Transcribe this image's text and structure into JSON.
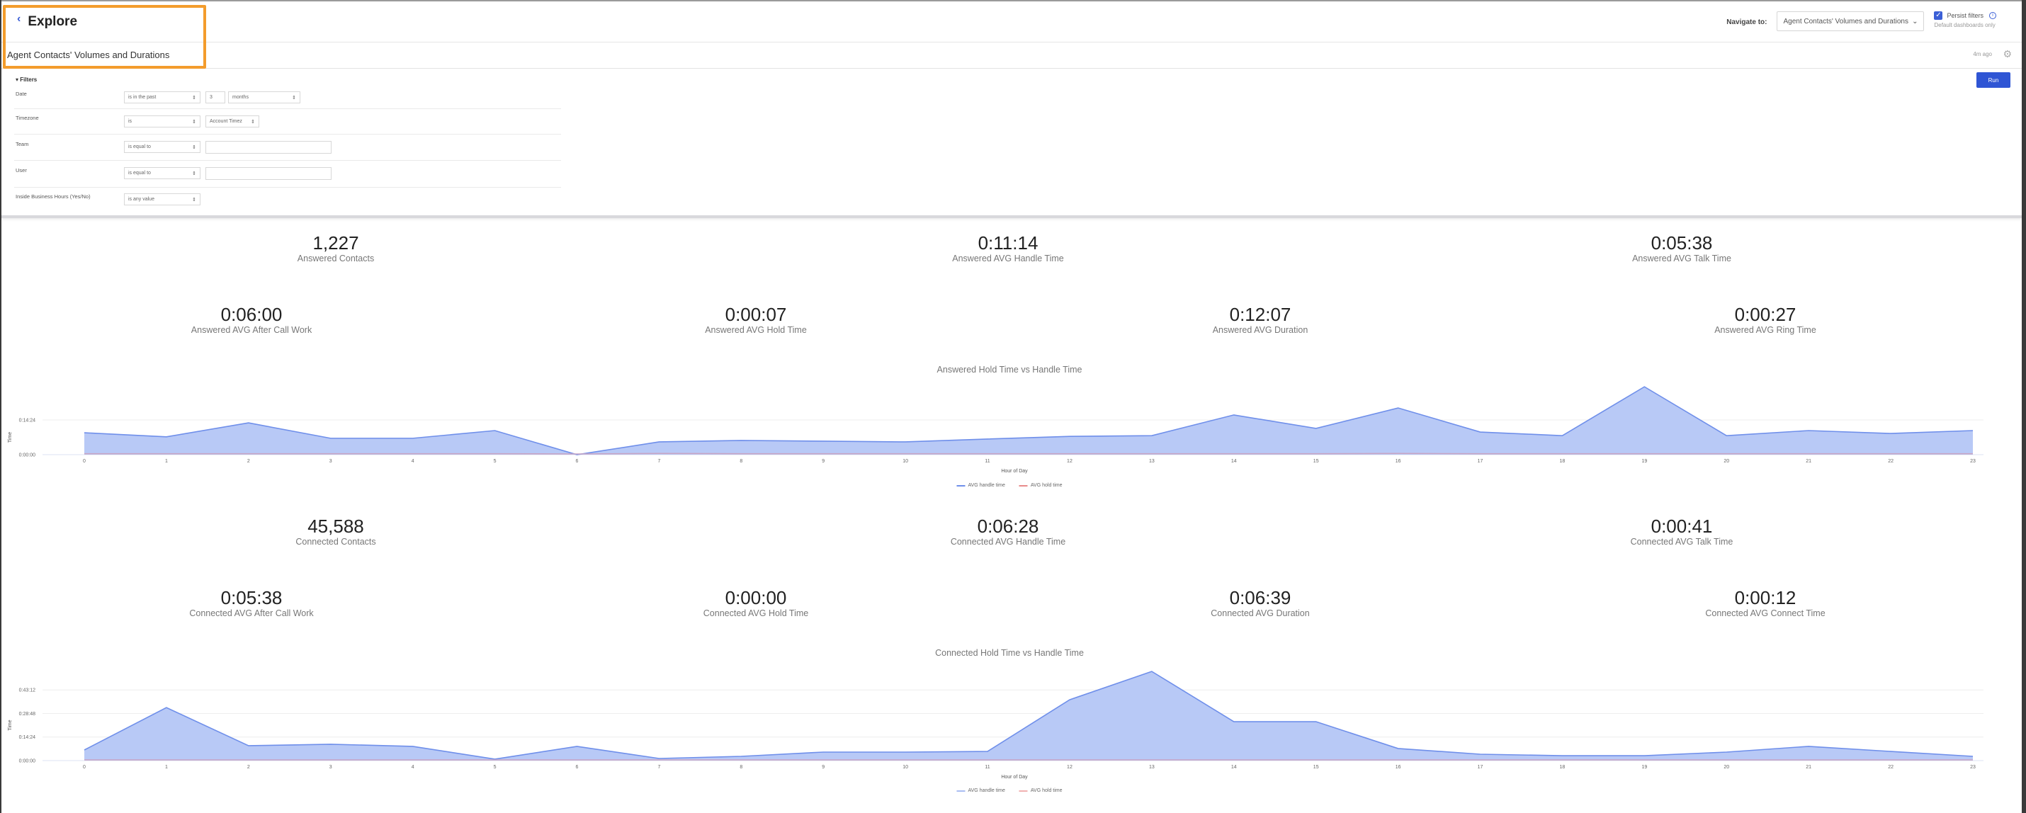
{
  "header": {
    "back_label": "Explore",
    "navigate_label": "Navigate to:",
    "navigate_value": "Agent Contacts' Volumes and Durations",
    "persist_filters_label": "Persist filters",
    "persist_filters_checked": true,
    "persist_filters_sub": "Default dashboards only"
  },
  "dashboard": {
    "title": "Agent Contacts' Volumes and Durations",
    "last_run": "4m ago"
  },
  "filters": {
    "toggle_label": "Filters",
    "run_label": "Run",
    "rows": [
      {
        "label": "Date",
        "operator": "is in the past",
        "value": "3",
        "unit": "months"
      },
      {
        "label": "Timezone",
        "operator": "is",
        "value": "Account Timez"
      },
      {
        "label": "Team",
        "operator": "is equal to",
        "value": ""
      },
      {
        "label": "User",
        "operator": "is equal to",
        "value": ""
      },
      {
        "label": "Inside Business Hours (Yes/No)",
        "operator": "is any value"
      }
    ]
  },
  "answered": {
    "kpis": [
      {
        "value": "1,227",
        "label": "Answered Contacts"
      },
      {
        "value": "0:11:14",
        "label": "Answered AVG Handle Time"
      },
      {
        "value": "0:05:38",
        "label": "Answered AVG Talk Time"
      },
      {
        "value": "0:06:00",
        "label": "Answered AVG After Call Work"
      },
      {
        "value": "0:00:07",
        "label": "Answered AVG Hold Time"
      },
      {
        "value": "0:12:07",
        "label": "Answered AVG Duration"
      },
      {
        "value": "0:00:27",
        "label": "Answered AVG Ring Time"
      }
    ]
  },
  "connected": {
    "kpis": [
      {
        "value": "45,588",
        "label": "Connected Contacts"
      },
      {
        "value": "0:06:28",
        "label": "Connected AVG Handle Time"
      },
      {
        "value": "0:00:41",
        "label": "Connected AVG Talk Time"
      },
      {
        "value": "0:05:38",
        "label": "Connected AVG After Call Work"
      },
      {
        "value": "0:00:00",
        "label": "Connected AVG Hold Time"
      },
      {
        "value": "0:06:39",
        "label": "Connected AVG Duration"
      },
      {
        "value": "0:00:12",
        "label": "Connected AVG Connect Time"
      }
    ]
  },
  "colors": {
    "accent": "#2f55d4",
    "highlight": "#f39c2c",
    "series_handle": "#6f8fea",
    "series_handle_fill": "#b4c6f5",
    "series_hold": "#e88a8a"
  },
  "chart_data": [
    {
      "type": "area",
      "title": "Answered Hold Time vs Handle Time",
      "xlabel": "Hour of Day",
      "ylabel": "Time",
      "y_ticks": [
        "0:00:00",
        "0:14:24"
      ],
      "y_tick_minutes": [
        0,
        14.4
      ],
      "ylim_minutes": [
        0,
        30
      ],
      "grid": true,
      "legend_position": "bottom",
      "x": [
        0,
        1,
        2,
        3,
        4,
        5,
        6,
        7,
        8,
        9,
        10,
        11,
        12,
        13,
        14,
        15,
        16,
        17,
        18,
        19,
        20,
        21,
        22,
        23
      ],
      "series": [
        {
          "name": "AVG handle time",
          "unit": "minutes",
          "values": [
            9.1,
            7.4,
            13.2,
            6.8,
            6.8,
            10.0,
            0.0,
            5.3,
            5.9,
            5.6,
            5.3,
            6.5,
            7.6,
            7.9,
            16.5,
            10.9,
            19.4,
            9.4,
            7.9,
            28.2,
            7.9,
            10.0,
            8.8,
            10.0
          ]
        },
        {
          "name": "AVG hold time",
          "unit": "minutes",
          "values": [
            0.1,
            0.1,
            0.1,
            0.1,
            0.1,
            0.1,
            0.0,
            0.2,
            0.1,
            0.1,
            0.1,
            0.1,
            0.1,
            0.1,
            0.1,
            0.1,
            0.2,
            0.1,
            0.1,
            0.1,
            0.1,
            0.1,
            0.1,
            0.1
          ]
        }
      ]
    },
    {
      "type": "area",
      "title": "Connected Hold Time vs Handle Time",
      "xlabel": "Hour of Day",
      "ylabel": "Time",
      "y_ticks": [
        "0:00:00",
        "0:14:24",
        "0:28:48",
        "0:43:12"
      ],
      "y_tick_minutes": [
        0,
        14.4,
        28.8,
        43.2
      ],
      "ylim_minutes": [
        0,
        58
      ],
      "grid": true,
      "legend_position": "bottom",
      "x": [
        0,
        1,
        2,
        3,
        4,
        5,
        6,
        7,
        8,
        9,
        10,
        11,
        12,
        13,
        14,
        15,
        16,
        17,
        18,
        19,
        20,
        21,
        22,
        23
      ],
      "series": [
        {
          "name": "AVG handle time",
          "unit": "minutes",
          "values": [
            6.5,
            32.4,
            9.1,
            10.0,
            8.7,
            0.9,
            8.7,
            1.3,
            2.6,
            5.2,
            5.2,
            5.6,
            37.2,
            54.5,
            23.8,
            23.8,
            7.4,
            3.9,
            3.0,
            3.0,
            5.2,
            8.7,
            5.6,
            2.6
          ]
        },
        {
          "name": "AVG hold time",
          "unit": "minutes",
          "values": [
            0,
            0,
            0,
            0,
            0,
            0,
            0,
            0,
            0,
            0,
            0,
            0,
            0,
            0,
            0,
            0,
            0,
            0,
            0,
            0,
            0,
            0,
            0,
            0
          ]
        }
      ]
    }
  ]
}
